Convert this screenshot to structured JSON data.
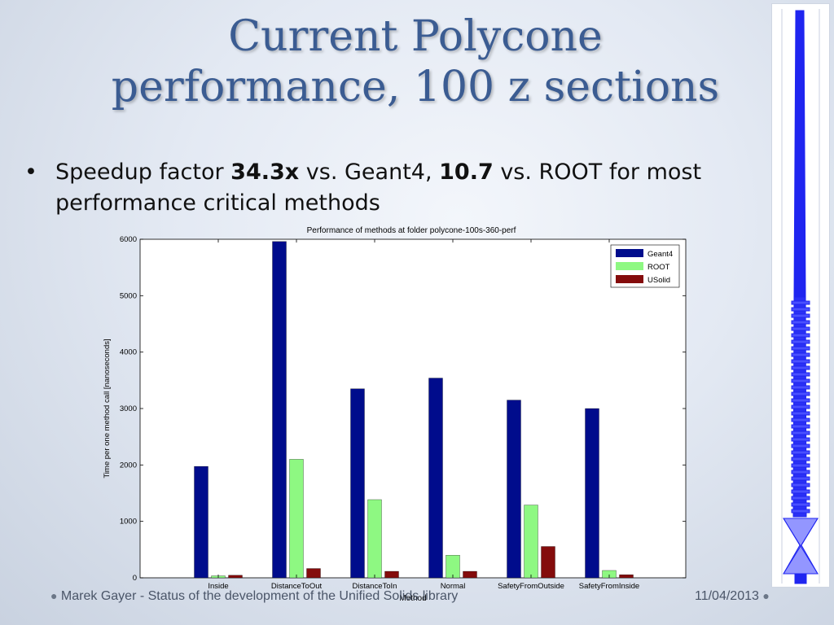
{
  "slide": {
    "title_line1": "Current Polycone",
    "title_line2": "performance, 100 z sections",
    "bullet_marker": "•",
    "bullet_pre": "Speedup factor ",
    "bullet_geant_factor": "34.3x",
    "bullet_mid": " vs. Geant4, ",
    "bullet_root_factor": "10.7",
    "bullet_post": " vs. ROOT  for most performance critical methods",
    "footer_left": "Marek Gayer - Status of the development of the Unified Solids library",
    "footer_right": "11/04/2013",
    "footer_dot": "●"
  },
  "chart_data": {
    "type": "bar",
    "title": "Performance of methods at folder polycone-100s-360-perf",
    "xlabel": "Method",
    "ylabel": "Time per one method call [nanoseconds]",
    "ylim": [
      0,
      6000
    ],
    "yticks": [
      0,
      1000,
      2000,
      3000,
      4000,
      5000,
      6000
    ],
    "categories": [
      "Inside",
      "DistanceToOut",
      "DistanceToIn",
      "Normal",
      "SafetyFromOutside",
      "SafetyFromInside"
    ],
    "series": [
      {
        "name": "Geant4",
        "color": "#000c8c",
        "values": [
          1975,
          5960,
          3350,
          3540,
          3150,
          3000
        ]
      },
      {
        "name": "ROOT",
        "color": "#8ef882",
        "values": [
          35,
          2100,
          1385,
          400,
          1290,
          130
        ]
      },
      {
        "name": "USolid",
        "color": "#840c0c",
        "values": [
          45,
          165,
          115,
          115,
          555,
          55
        ]
      }
    ],
    "legend_position": "top-right",
    "grid": false
  },
  "side_image": {
    "description_icon": "polycone-wireframe-icon",
    "color": "#1f25f0"
  }
}
